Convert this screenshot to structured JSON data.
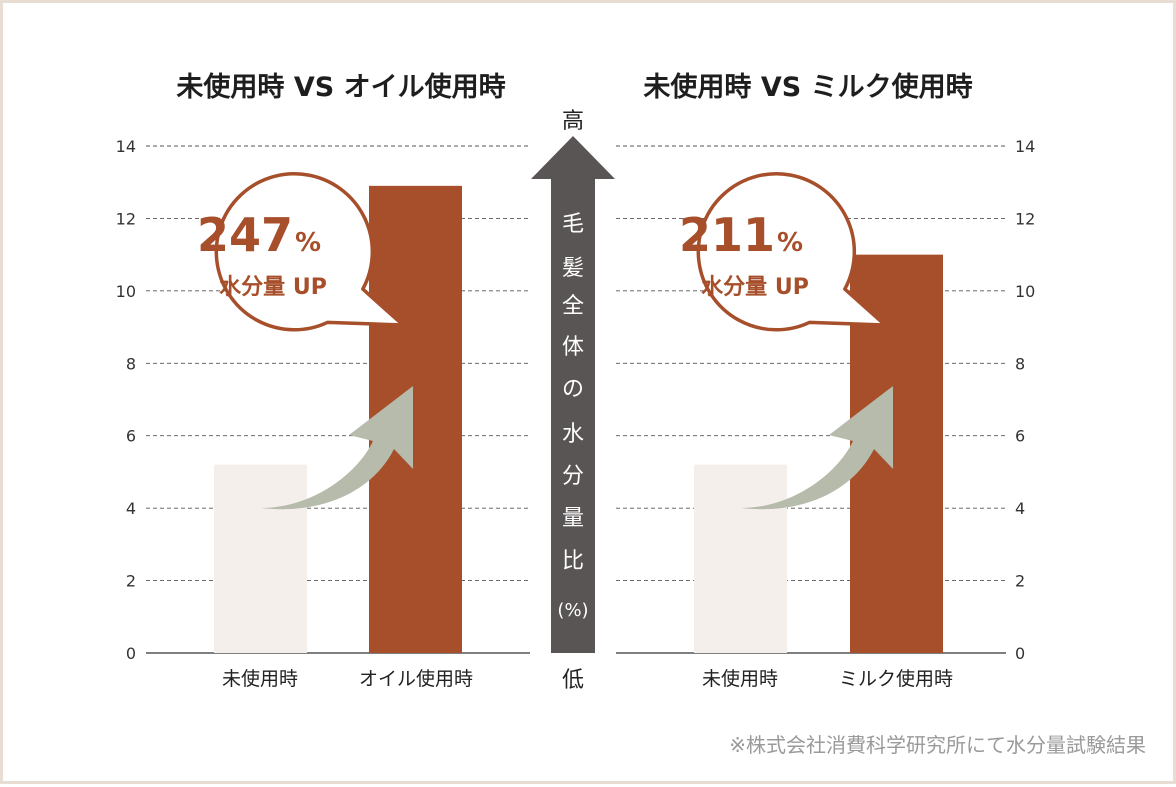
{
  "colors": {
    "before_bar": "#f4efea",
    "after_bar": "#a64f2a",
    "accent_text": "#a64f2a",
    "curve_arrow": "#b6bbac",
    "center_arrow": "#5a5555",
    "grid": "#555555",
    "border": "#e7ddd3"
  },
  "center_axis": {
    "top_label": "高",
    "bottom_label": "低",
    "vertical_label": [
      "毛",
      "髪",
      "全",
      "体",
      "の",
      "水",
      "分",
      "量",
      "比"
    ],
    "unit": "(%)"
  },
  "callouts": [
    {
      "percent": "247",
      "percent_sign": "%",
      "label": "水分量 UP"
    },
    {
      "percent": "211",
      "percent_sign": "%",
      "label": "水分量 UP"
    }
  ],
  "footnote": "※株式会社消費科学研究所にて水分量試験結果",
  "chart_data": [
    {
      "type": "bar",
      "title": "未使用時 VS オイル使用時",
      "categories": [
        "未使用時",
        "オイル使用時"
      ],
      "values": [
        5.2,
        12.9
      ],
      "ylim": [
        0,
        14
      ],
      "yticks": [
        "0",
        "2",
        "4",
        "6",
        "8",
        "10",
        "12",
        "14"
      ],
      "grid": true,
      "axis_side": "left"
    },
    {
      "type": "bar",
      "title": "未使用時 VS ミルク使用時",
      "categories": [
        "未使用時",
        "ミルク使用時"
      ],
      "values": [
        5.2,
        11.0
      ],
      "ylim": [
        0,
        14
      ],
      "yticks": [
        "0",
        "2",
        "4",
        "6",
        "8",
        "10",
        "12",
        "14"
      ],
      "grid": true,
      "axis_side": "right"
    }
  ]
}
